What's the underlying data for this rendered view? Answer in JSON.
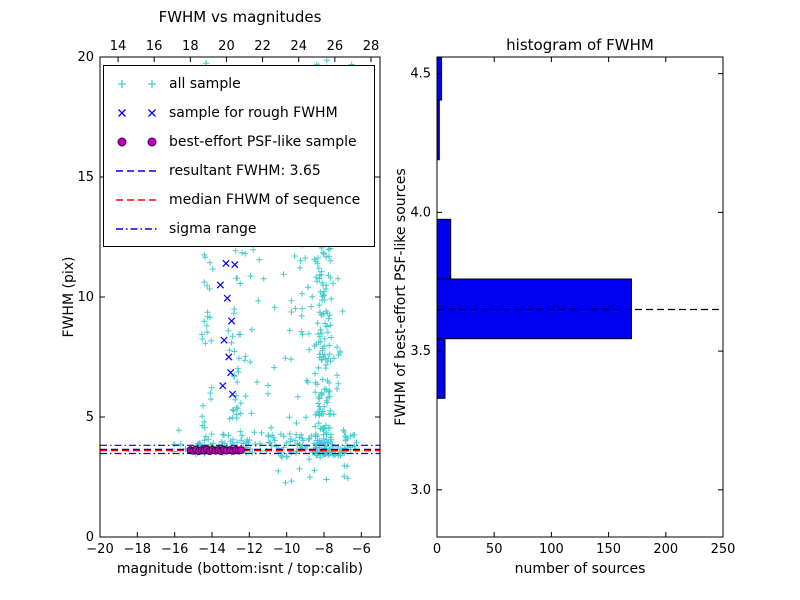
{
  "colors": {
    "all_sample": "#44cccc",
    "rough": "#0000ff",
    "psf_fill": "#bf00bf",
    "psf_edge": "#380038",
    "resultant": "#0000ee",
    "median": "#ff0000",
    "sigma": "#0000ee",
    "hist_bar": "#0000f0",
    "hist_median_line": "#000000",
    "axis": "#000000",
    "background": "#ffffff"
  },
  "chart_data": [
    {
      "type": "scatter",
      "title": "FWHM vs magnitudes",
      "xlabel": "magnitude (bottom:isnt / top:calib)",
      "ylabel": "FWHM (pix)",
      "xlim": [
        -20,
        -5
      ],
      "x2lim": [
        13,
        28.5
      ],
      "ylim": [
        0,
        20
      ],
      "seed": 42,
      "xticks": {
        "vals": [
          -20,
          -18,
          -16,
          -14,
          -12,
          -10,
          -8,
          -6
        ],
        "labels": [
          "-20",
          "-18",
          "-16",
          "-14",
          "-12",
          "-10",
          "-8",
          "-6"
        ]
      },
      "x2ticks": {
        "vals": [
          14,
          16,
          18,
          20,
          22,
          24,
          26,
          28
        ],
        "labels": [
          "14",
          "16",
          "18",
          "20",
          "22",
          "24",
          "26",
          "28"
        ]
      },
      "yticks": {
        "vals": [
          0,
          5,
          10,
          15,
          20
        ],
        "labels": [
          "0",
          "5",
          "10",
          "15",
          "20"
        ]
      },
      "series": [
        {
          "name": "all sample",
          "marker": "plus",
          "clusters": [
            {
              "x0": -8.5,
              "x1": -7.6,
              "y0": 3.4,
              "y1": 19.8,
              "n": 210,
              "p": 1.7
            },
            {
              "x0": -9.3,
              "x1": -6.9,
              "y0": 3.4,
              "y1": 17.0,
              "n": 90,
              "p": 1.5
            },
            {
              "x0": -10.3,
              "x1": -6.2,
              "y0": 14.5,
              "y1": 20.0,
              "n": 55,
              "p": 1.0
            },
            {
              "x0": -14.55,
              "x1": -13.95,
              "y0": 3.6,
              "y1": 19.8,
              "n": 55,
              "p": 1.3
            },
            {
              "x0": -11.3,
              "x1": -6.2,
              "y0": 3.3,
              "y1": 4.3,
              "n": 90,
              "p": 1.0
            },
            {
              "x0": -15.6,
              "x1": -11.3,
              "y0": 3.45,
              "y1": 4.05,
              "n": 45,
              "p": 1.0
            },
            {
              "x0": -13.7,
              "x1": -9.3,
              "y0": 4.2,
              "y1": 13.0,
              "n": 50,
              "p": 1.5
            },
            {
              "x0": -12.95,
              "x1": -12.35,
              "y0": 4.2,
              "y1": 12.5,
              "n": 20,
              "p": 1.2
            },
            {
              "x0": -10.5,
              "x1": -6.4,
              "y0": 2.2,
              "y1": 3.25,
              "n": 12,
              "p": 1.0
            },
            {
              "x0": -16.7,
              "x1": -15.6,
              "y0": 3.5,
              "y1": 4.6,
              "n": 4,
              "p": 1.0
            }
          ]
        },
        {
          "name": "sample for rough FWHM",
          "marker": "x",
          "points": [
            [
              -13.25,
              11.4
            ],
            [
              -12.78,
              11.35
            ],
            [
              -13.55,
              10.5
            ],
            [
              -13.18,
              9.95
            ],
            [
              -12.95,
              9.0
            ],
            [
              -13.35,
              8.2
            ],
            [
              -13.1,
              7.5
            ],
            [
              -13.0,
              6.85
            ],
            [
              -13.42,
              6.3
            ],
            [
              -12.9,
              5.95
            ]
          ]
        },
        {
          "name": "best-effort PSF-like sample",
          "marker": "circle",
          "points": [
            [
              -15.15,
              3.62
            ],
            [
              -15.0,
              3.59
            ],
            [
              -14.85,
              3.64
            ],
            [
              -14.7,
              3.58
            ],
            [
              -14.55,
              3.62
            ],
            [
              -14.42,
              3.6
            ],
            [
              -14.28,
              3.65
            ],
            [
              -14.12,
              3.58
            ],
            [
              -13.97,
              3.63
            ],
            [
              -13.82,
              3.6
            ],
            [
              -13.66,
              3.62
            ],
            [
              -13.52,
              3.58
            ],
            [
              -13.37,
              3.64
            ],
            [
              -13.22,
              3.6
            ],
            [
              -13.02,
              3.62
            ],
            [
              -12.87,
              3.59
            ],
            [
              -12.72,
              3.63
            ],
            [
              -12.57,
              3.6
            ],
            [
              -12.44,
              3.62
            ]
          ]
        }
      ],
      "hlines": [
        {
          "label": "resultant FWHM: 3.65",
          "y": 3.65,
          "style": "dashed",
          "color_key": "resultant"
        },
        {
          "label": "median FHWM of sequence",
          "y": 3.6,
          "style": "dashed",
          "color_key": "median"
        },
        {
          "label": "sigma range",
          "y": 3.48,
          "style": "dashdot",
          "color_key": "sigma"
        },
        {
          "label": "",
          "y": 3.82,
          "style": "dashdot",
          "color_key": "sigma"
        }
      ]
    },
    {
      "type": "bar-h",
      "title": "histogram of FWHM",
      "xlabel": "number of sources",
      "ylabel": "FWHM of best-effort PSF-like sources",
      "xlim": [
        0,
        250
      ],
      "ylim": [
        2.83,
        4.56
      ],
      "xticks": {
        "vals": [
          0,
          50,
          100,
          150,
          200,
          250
        ],
        "labels": [
          "0",
          "50",
          "100",
          "150",
          "200",
          "250"
        ]
      },
      "yticks": {
        "vals": [
          3.0,
          3.5,
          4.0,
          4.5
        ],
        "labels": [
          "3.0",
          "3.5",
          "4.0",
          "4.5"
        ]
      },
      "bars": [
        {
          "y0": 3.33,
          "y1": 3.545,
          "count": 7
        },
        {
          "y0": 3.545,
          "y1": 3.76,
          "count": 170
        },
        {
          "y0": 3.76,
          "y1": 3.975,
          "count": 12
        },
        {
          "y0": 4.19,
          "y1": 4.405,
          "count": 2
        },
        {
          "y0": 4.405,
          "y1": 4.56,
          "count": 4
        }
      ],
      "median_line": {
        "y": 3.65,
        "style": "dashed"
      }
    }
  ]
}
